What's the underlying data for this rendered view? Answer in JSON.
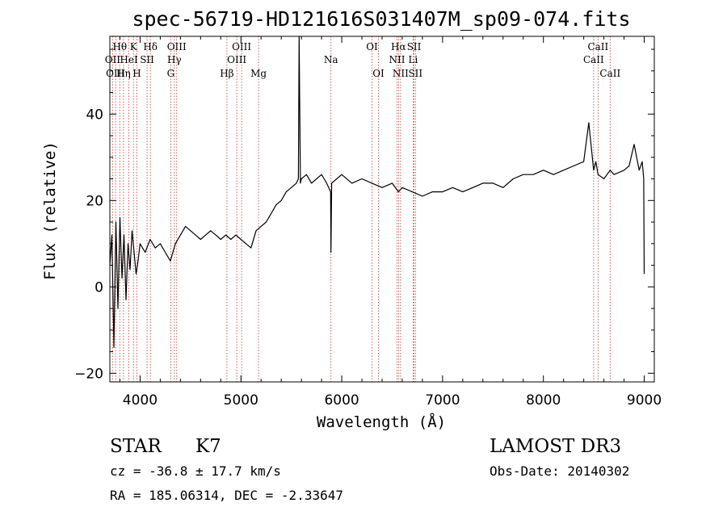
{
  "chart_data": {
    "type": "line",
    "title": "spec-56719-HD121616S031407M_sp09-074.fits",
    "xlabel": "Wavelength (Å)",
    "ylabel": "Flux (relative)",
    "xlim": [
      3700,
      9100
    ],
    "ylim": [
      -22,
      58
    ],
    "xticks": [
      4000,
      5000,
      6000,
      7000,
      8000,
      9000
    ],
    "yticks": [
      -20,
      0,
      20,
      40
    ],
    "grid": false,
    "series": [
      {
        "x": [
          3700,
          3720,
          3740,
          3760,
          3780,
          3800,
          3820,
          3840,
          3860,
          3880,
          3900,
          3920,
          3940,
          3960,
          3980,
          4000,
          4050,
          4100,
          4150,
          4200,
          4250,
          4300,
          4350,
          4400,
          4450,
          4500,
          4550,
          4600,
          4650,
          4700,
          4750,
          4800,
          4850,
          4900,
          4950,
          5000,
          5050,
          5100,
          5150,
          5200,
          5250,
          5300,
          5350,
          5400,
          5450,
          5500,
          5550,
          5570,
          5577,
          5590,
          5600,
          5650,
          5700,
          5750,
          5800,
          5850,
          5890,
          5893,
          5900,
          5950,
          6000,
          6100,
          6200,
          6300,
          6400,
          6500,
          6563,
          6600,
          6700,
          6800,
          6900,
          7000,
          7100,
          7200,
          7300,
          7400,
          7500,
          7600,
          7700,
          7800,
          7900,
          8000,
          8100,
          8200,
          8300,
          8400,
          8450,
          8498,
          8520,
          8542,
          8600,
          8662,
          8700,
          8800,
          8850,
          8900,
          8950,
          8980,
          8995,
          9000
        ],
        "y": [
          5,
          12,
          -14,
          15,
          -5,
          16,
          2,
          12,
          -3,
          10,
          4,
          13,
          8,
          3,
          6,
          10,
          8,
          11,
          9,
          10,
          8,
          6,
          10,
          12,
          14,
          13,
          12,
          11,
          12,
          13,
          12,
          11,
          12,
          11,
          12,
          11,
          10,
          9,
          13,
          14,
          15,
          17,
          19,
          20,
          22,
          23,
          24,
          25,
          58,
          24,
          25,
          26,
          24,
          25,
          26,
          24,
          22,
          8,
          24,
          25,
          26,
          24,
          25,
          24,
          23,
          24,
          22,
          23,
          22,
          21,
          22,
          22,
          23,
          22,
          23,
          24,
          24,
          23,
          25,
          26,
          26,
          27,
          26,
          27,
          28,
          29,
          38,
          27,
          29,
          26,
          25,
          27,
          26,
          27,
          28,
          33,
          27,
          29,
          25,
          3
        ]
      }
    ],
    "line_markers": [
      {
        "label": "Hθ",
        "x": 3798,
        "row": 1
      },
      {
        "label": "OII",
        "x": 3727,
        "row": 2
      },
      {
        "label": "OIII",
        "x": 3757,
        "row": 3
      },
      {
        "label": "K",
        "x": 3934,
        "row": 1
      },
      {
        "label": "HeI",
        "x": 3889,
        "row": 2
      },
      {
        "label": "Hη",
        "x": 3835,
        "row": 3
      },
      {
        "label": "H",
        "x": 3968,
        "row": 3
      },
      {
        "label": "SII",
        "x": 4069,
        "row": 2
      },
      {
        "label": "Hδ",
        "x": 4102,
        "row": 1
      },
      {
        "label": "OIII",
        "x": 4363,
        "row": 1
      },
      {
        "label": "Hγ",
        "x": 4340,
        "row": 2
      },
      {
        "label": "G",
        "x": 4304,
        "row": 3
      },
      {
        "label": "Hβ",
        "x": 4861,
        "row": 3
      },
      {
        "label": "OIII",
        "x": 5007,
        "row": 1
      },
      {
        "label": "OIII",
        "x": 4959,
        "row": 2
      },
      {
        "label": "Mg",
        "x": 5175,
        "row": 3
      },
      {
        "label": "Na",
        "x": 5893,
        "row": 2
      },
      {
        "label": "OI",
        "x": 6300,
        "row": 1
      },
      {
        "label": "OI",
        "x": 6364,
        "row": 3
      },
      {
        "label": "Hα",
        "x": 6563,
        "row": 1
      },
      {
        "label": "NII",
        "x": 6548,
        "row": 2
      },
      {
        "label": "NII",
        "x": 6583,
        "row": 3
      },
      {
        "label": "SII",
        "x": 6717,
        "row": 1
      },
      {
        "label": "Li",
        "x": 6708,
        "row": 2
      },
      {
        "label": "SII",
        "x": 6731,
        "row": 3
      },
      {
        "label": "CaII",
        "x": 8542,
        "row": 1
      },
      {
        "label": "CaII",
        "x": 8498,
        "row": 2
      },
      {
        "label": "CaII",
        "x": 8662,
        "row": 3
      }
    ]
  },
  "info": {
    "class": "STAR",
    "subclass": "K7",
    "survey": "LAMOST DR3",
    "cz": "cz = -36.8 ± 17.7 km/s",
    "obs_date": "Obs-Date: 20140302",
    "coords": "RA = 185.06314, DEC =  -2.33647"
  },
  "colors": {
    "line_marker": "#c0392b",
    "spectrum": "#000000"
  }
}
